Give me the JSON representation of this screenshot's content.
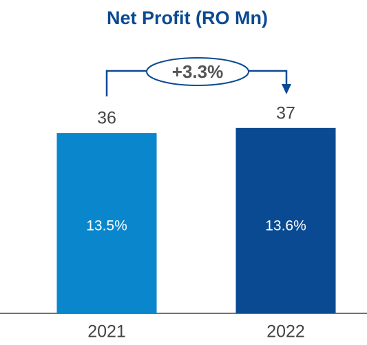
{
  "chart_data": {
    "type": "bar",
    "title": "Net Profit (RO Mn)",
    "categories": [
      "2021",
      "2022"
    ],
    "values": [
      36,
      37
    ],
    "colors": [
      "#0a86cc",
      "#0a4a92"
    ],
    "bar_labels": [
      "13.5%",
      "13.6%"
    ],
    "annotation": "+3.3%",
    "ylim": [
      0,
      40
    ]
  }
}
